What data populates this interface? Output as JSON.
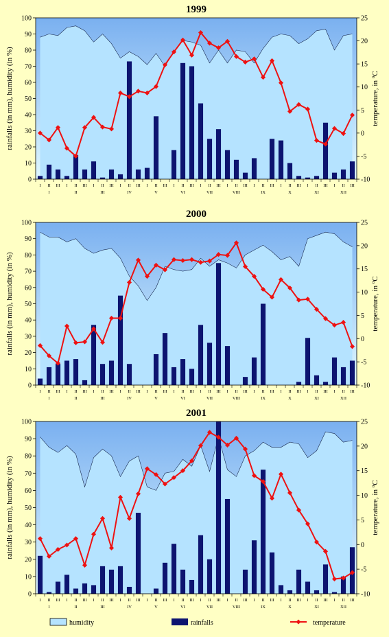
{
  "figure": {
    "left_axis_label": "rainfalls (in mm), humidity (in %)",
    "right_axis_label_main": "temperature, in ",
    "right_axis_unit_sup": "o",
    "right_axis_unit": "C",
    "legend": {
      "humidity": "humidity",
      "rainfalls": "rainfalls",
      "temperature": "temperature"
    },
    "colors": {
      "background": "#ffffc4",
      "plot_top": "#7ab0f0",
      "plot_bottom": "#e0f8ff",
      "humidity_fill": "#b5e3ff",
      "bars": "#0d1470",
      "temperature": "#ee1111"
    }
  },
  "chart_data": [
    {
      "type": "bar",
      "title": "1999",
      "decade_labels": [
        "I",
        "II",
        "III",
        "I",
        "II",
        "III",
        "I",
        "II",
        "III",
        "I",
        "II",
        "III",
        "I",
        "II",
        "III",
        "I",
        "II",
        "III",
        "I",
        "II",
        "III",
        "I",
        "II",
        "III",
        "I",
        "II",
        "III",
        "I",
        "II",
        "III",
        "I",
        "II",
        "III",
        "I",
        "II",
        "III"
      ],
      "month_labels": [
        "I",
        "II",
        "III",
        "IV",
        "V",
        "VI",
        "VII",
        "VIII",
        "IX",
        "X",
        "XI",
        "XII"
      ],
      "ylim": [
        0,
        100
      ],
      "y_ticks": [
        0,
        10,
        20,
        30,
        40,
        50,
        60,
        70,
        80,
        90,
        100
      ],
      "y2lim": [
        -10,
        25
      ],
      "y2_ticks": [
        -10,
        -5,
        0,
        5,
        10,
        15,
        20,
        25
      ],
      "grid": false,
      "series": [
        {
          "name": "humidity",
          "type": "area",
          "values": [
            88,
            90,
            89,
            94,
            95,
            92,
            85,
            90,
            84,
            75,
            79,
            76,
            71,
            78,
            70,
            79,
            86,
            85,
            83,
            72,
            80,
            72,
            80,
            79,
            72,
            81,
            88,
            90,
            89,
            84,
            87,
            92,
            93,
            80,
            89,
            90
          ]
        },
        {
          "name": "rainfalls",
          "type": "bar",
          "values": [
            2,
            9,
            6,
            2,
            15,
            6,
            11,
            1,
            6,
            3,
            73,
            6,
            7,
            39,
            0,
            18,
            72,
            70,
            47,
            25,
            31,
            18,
            12,
            4,
            13,
            0,
            25,
            24,
            10,
            2,
            1,
            2,
            35,
            4,
            6,
            11
          ]
        },
        {
          "name": "temperature",
          "type": "line",
          "values": [
            0,
            -1.5,
            1.2,
            -3.3,
            -5,
            1.2,
            3.4,
            1.3,
            0.9,
            8.7,
            7.9,
            9.1,
            8.7,
            10.1,
            14.8,
            17.6,
            20.2,
            16.9,
            21.8,
            19.5,
            18.5,
            19.9,
            16.6,
            15.4,
            16.1,
            12.1,
            15.7,
            10.9,
            4.7,
            6.2,
            5.2,
            -1.6,
            -2.4,
            1,
            -0.1,
            3.9
          ]
        }
      ]
    },
    {
      "type": "bar",
      "title": "2000",
      "decade_labels": [
        "I",
        "II",
        "III",
        "I",
        "II",
        "III",
        "I",
        "II",
        "III",
        "I",
        "II",
        "III",
        "I",
        "II",
        "III",
        "I",
        "II",
        "III",
        "I",
        "II",
        "III",
        "I",
        "II",
        "III",
        "I",
        "II",
        "III",
        "I",
        "II",
        "III",
        "I",
        "II",
        "III",
        "I",
        "II",
        "III"
      ],
      "month_labels": [
        "I",
        "II",
        "III",
        "IV",
        "V",
        "VI",
        "VII",
        "VIII",
        "IX",
        "X",
        "XI",
        "XII"
      ],
      "ylim": [
        0,
        100
      ],
      "y_ticks": [
        0,
        10,
        20,
        30,
        40,
        50,
        60,
        70,
        80,
        90,
        100
      ],
      "y2lim": [
        -10,
        25
      ],
      "y2_ticks": [
        -10,
        -5,
        0,
        5,
        10,
        15,
        20,
        25
      ],
      "grid": false,
      "series": [
        {
          "name": "humidity",
          "type": "area",
          "values": [
            94,
            91,
            91,
            88,
            90,
            84,
            81,
            83,
            84,
            78,
            67,
            61,
            52,
            60,
            73,
            71,
            70,
            71,
            78,
            73,
            77,
            75,
            72,
            80,
            83,
            86,
            82,
            77,
            79,
            73,
            90,
            92,
            94,
            93,
            88,
            85
          ]
        },
        {
          "name": "rainfalls",
          "type": "bar",
          "values": [
            4,
            11,
            13,
            15,
            16,
            3,
            37,
            13,
            15,
            55,
            13,
            0,
            0,
            19,
            32,
            11,
            16,
            10,
            37,
            26,
            75,
            24,
            0,
            5,
            17,
            50,
            0,
            0,
            0,
            2,
            29,
            6,
            2,
            17,
            11,
            15
          ]
        },
        {
          "name": "temperature",
          "type": "line",
          "values": [
            -1.5,
            -3.7,
            -5.3,
            2.7,
            -0.9,
            -0.7,
            2.1,
            -0.8,
            4.4,
            4.4,
            12.1,
            16.9,
            13.4,
            15.8,
            14.8,
            17,
            16.8,
            17,
            16.4,
            16.7,
            18.1,
            17.9,
            20.6,
            15.5,
            13.4,
            10.6,
            8.9,
            12.7,
            10.9,
            8.3,
            8.5,
            6.3,
            4.3,
            2.9,
            3.5,
            -1.7
          ]
        }
      ]
    },
    {
      "type": "bar",
      "title": "2001",
      "decade_labels": [
        "I",
        "II",
        "III",
        "I",
        "II",
        "III",
        "I",
        "II",
        "III",
        "I",
        "II",
        "III",
        "I",
        "II",
        "III",
        "I",
        "II",
        "III",
        "I",
        "II",
        "III",
        "I",
        "II",
        "III",
        "I",
        "II",
        "III",
        "I",
        "II",
        "III",
        "I",
        "II",
        "III",
        "I",
        "II",
        "III"
      ],
      "month_labels": [
        "I",
        "II",
        "III",
        "IV",
        "V",
        "VI",
        "VII",
        "VIII",
        "IX",
        "X",
        "XI",
        "XII"
      ],
      "ylim": [
        0,
        100
      ],
      "y_ticks": [
        0,
        10,
        20,
        30,
        40,
        50,
        60,
        70,
        80,
        90,
        100
      ],
      "y2lim": [
        -10,
        25
      ],
      "y2_ticks": [
        -10,
        -5,
        0,
        5,
        10,
        15,
        20,
        25
      ],
      "grid": false,
      "series": [
        {
          "name": "humidity",
          "type": "area",
          "values": [
            91,
            85,
            82,
            86,
            81,
            62,
            79,
            84,
            80,
            68,
            77,
            80,
            62,
            60,
            70,
            71,
            78,
            74,
            86,
            71,
            91,
            72,
            68,
            80,
            83,
            88,
            85,
            85,
            88,
            87,
            79,
            83,
            94,
            93,
            88,
            89
          ]
        },
        {
          "name": "rainfalls",
          "type": "bar",
          "values": [
            22,
            1,
            7,
            11,
            3,
            6,
            5,
            16,
            14,
            16,
            4,
            47,
            0,
            3,
            18,
            29,
            14,
            8,
            34,
            20,
            100,
            55,
            0,
            14,
            31,
            72,
            24,
            5,
            2,
            14,
            7,
            2,
            17,
            1,
            10,
            27
          ]
        },
        {
          "name": "temperature",
          "type": "line",
          "values": [
            1.2,
            -2.4,
            -1,
            -0.1,
            1.2,
            -4.2,
            2.1,
            5.3,
            -0.7,
            9.6,
            5.3,
            10.3,
            15.4,
            14.2,
            12.3,
            13.6,
            15,
            17,
            20.1,
            22.8,
            21.8,
            20.2,
            21.6,
            19.4,
            14,
            12.8,
            9.4,
            14.3,
            10.5,
            7,
            4.2,
            0.5,
            -1.4,
            -7,
            -6.8,
            -5.7
          ]
        }
      ]
    }
  ]
}
